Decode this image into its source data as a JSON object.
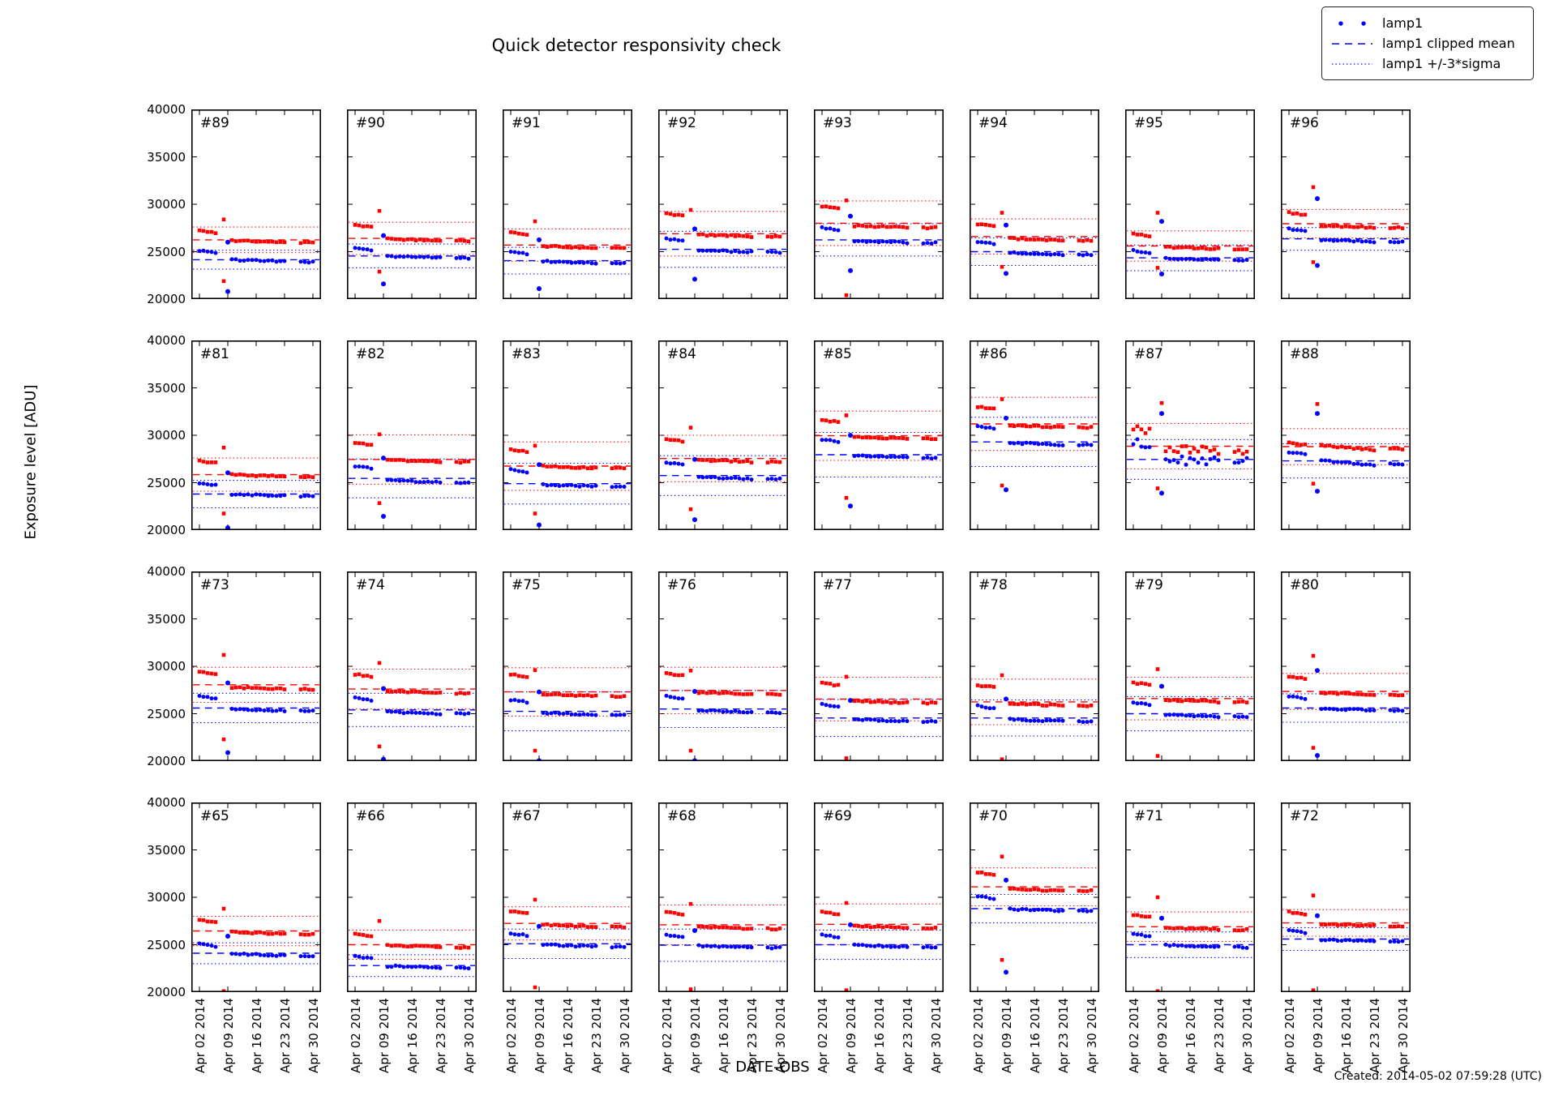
{
  "chart_data": {
    "type": "scatter",
    "title": "Quick detector responsivity check",
    "xlabel": "DATE-OBS",
    "ylabel": "Exposure level [ADU]",
    "created_note": "Created: 2014-05-02 07:59:28 (UTC)",
    "ylim": [
      20000,
      40000
    ],
    "yticks": [
      40000,
      35000,
      30000,
      25000,
      20000
    ],
    "ytick_labels": [
      "40000",
      "35000",
      "30000",
      "25000",
      "20000"
    ],
    "xtick_days": [
      2,
      9,
      16,
      23,
      30
    ],
    "xtick_labels": [
      "Apr 02 2014",
      "Apr 09 2014",
      "Apr 16 2014",
      "Apr 23 2014",
      "Apr 30 2014"
    ],
    "legend": [
      {
        "label": "lamp1",
        "marker": "dots",
        "color": "#0000ff"
      },
      {
        "label": "lamp1 clipped mean",
        "marker": "dashed",
        "color": "#0000ff"
      },
      {
        "label": "lamp1 +/-3*sigma",
        "marker": "dotted",
        "color": "#0000ff"
      }
    ],
    "colors": {
      "blue": "#0000ff",
      "red": "#ff0000"
    },
    "point_days": {
      "pre": [
        2,
        3,
        4,
        5,
        6
      ],
      "main": [
        10,
        11,
        12,
        13,
        14,
        15,
        16,
        17,
        18,
        19,
        20,
        21,
        22,
        23
      ],
      "late": [
        27,
        28,
        29,
        30
      ]
    },
    "panel_format": "r/b = [early_level, main_level, clipped_mean, sigma3]; out = [series, day, value]",
    "panels": [
      {
        "id": "#89",
        "r": [
          27100,
          26100,
          26250,
          1350
        ],
        "b": [
          25000,
          24050,
          24150,
          1000
        ],
        "out": [
          [
            "r",
            8,
            28400
          ],
          [
            "b",
            9,
            26000
          ],
          [
            "r",
            8,
            21900
          ],
          [
            "b",
            9,
            20800
          ]
        ]
      },
      {
        "id": "#90",
        "r": [
          27700,
          26250,
          26400,
          1700
        ],
        "b": [
          25300,
          24450,
          24550,
          1250
        ],
        "out": [
          [
            "r",
            8,
            29300
          ],
          [
            "b",
            9,
            26700
          ],
          [
            "r",
            8,
            22900
          ],
          [
            "b",
            9,
            21600
          ]
        ]
      },
      {
        "id": "#91",
        "r": [
          26900,
          25500,
          25700,
          1700
        ],
        "b": [
          24900,
          23900,
          24050,
          1400
        ],
        "out": [
          [
            "r",
            8,
            28200
          ],
          [
            "b",
            9,
            26250
          ],
          [
            "b",
            9,
            21100
          ]
        ]
      },
      {
        "id": "#92",
        "r": [
          28900,
          26700,
          26900,
          2350
        ],
        "b": [
          26250,
          25050,
          25250,
          1900
        ],
        "out": [
          [
            "r",
            8,
            29400
          ],
          [
            "b",
            9,
            27400
          ],
          [
            "b",
            9,
            22100
          ]
        ]
      },
      {
        "id": "#93",
        "r": [
          29650,
          27650,
          28000,
          2350
        ],
        "b": [
          27400,
          26050,
          26250,
          1700
        ],
        "out": [
          [
            "r",
            8,
            30400
          ],
          [
            "b",
            9,
            28750
          ],
          [
            "b",
            9,
            23000
          ],
          [
            "r",
            8,
            20400
          ]
        ]
      },
      {
        "id": "#94",
        "r": [
          27800,
          26300,
          26600,
          1850
        ],
        "b": [
          25950,
          24800,
          25000,
          1450
        ],
        "out": [
          [
            "r",
            8,
            29100
          ],
          [
            "b",
            9,
            27800
          ],
          [
            "r",
            8,
            23400
          ],
          [
            "b",
            9,
            22700
          ]
        ]
      },
      {
        "id": "#95",
        "r": [
          26800,
          25400,
          25600,
          1600
        ],
        "b": [
          25000,
          24200,
          24350,
          1350
        ],
        "out": [
          [
            "r",
            8,
            29100
          ],
          [
            "b",
            9,
            28200
          ],
          [
            "r",
            8,
            23300
          ],
          [
            "b",
            9,
            22650
          ]
        ]
      },
      {
        "id": "#96",
        "r": [
          29000,
          27650,
          27950,
          1500
        ],
        "b": [
          27300,
          26150,
          26350,
          1200
        ],
        "out": [
          [
            "r",
            8,
            31800
          ],
          [
            "b",
            9,
            30600
          ],
          [
            "r",
            8,
            23900
          ],
          [
            "b",
            9,
            23550
          ]
        ]
      },
      {
        "id": "#81",
        "r": [
          27200,
          25750,
          25850,
          1750
        ],
        "b": [
          24850,
          23700,
          23800,
          1450
        ],
        "out": [
          [
            "r",
            8,
            28700
          ],
          [
            "b",
            9,
            26050
          ],
          [
            "r",
            8,
            21750
          ],
          [
            "b",
            9,
            20250
          ]
        ]
      },
      {
        "id": "#82",
        "r": [
          29100,
          27300,
          27450,
          2600
        ],
        "b": [
          26650,
          25150,
          25450,
          2050
        ],
        "out": [
          [
            "r",
            8,
            30100
          ],
          [
            "b",
            9,
            27600
          ],
          [
            "r",
            8,
            22850
          ],
          [
            "b",
            9,
            21450
          ]
        ]
      },
      {
        "id": "#83",
        "r": [
          28400,
          26650,
          26750,
          2550
        ],
        "b": [
          26250,
          24700,
          24900,
          2150
        ],
        "out": [
          [
            "r",
            8,
            28900
          ],
          [
            "b",
            9,
            26900
          ],
          [
            "r",
            8,
            21750
          ],
          [
            "b",
            9,
            20550
          ]
        ]
      },
      {
        "id": "#84",
        "r": [
          29500,
          27300,
          27550,
          2450
        ],
        "b": [
          27000,
          25500,
          25750,
          2100
        ],
        "out": [
          [
            "r",
            8,
            30800
          ],
          [
            "b",
            9,
            27450
          ],
          [
            "r",
            8,
            22200
          ],
          [
            "b",
            9,
            21100
          ]
        ]
      },
      {
        "id": "#85",
        "r": [
          31500,
          29750,
          29950,
          2600
        ],
        "b": [
          29450,
          27750,
          27950,
          2350
        ],
        "out": [
          [
            "r",
            8,
            32100
          ],
          [
            "b",
            9,
            30000
          ],
          [
            "r",
            8,
            23400
          ],
          [
            "b",
            9,
            22550
          ]
        ]
      },
      {
        "id": "#86",
        "r": [
          32900,
          30950,
          31200,
          2800
        ],
        "b": [
          30850,
          29100,
          29300,
          2600
        ],
        "out": [
          [
            "r",
            8,
            33800
          ],
          [
            "b",
            9,
            31800
          ],
          [
            "r",
            8,
            24700
          ],
          [
            "b",
            9,
            24250
          ]
        ]
      },
      {
        "id": "#87",
        "r": [
          30600,
          28500,
          28850,
          2400
        ],
        "b": [
          29100,
          27300,
          27450,
          2100
        ],
        "jit": 6,
        "out": [
          [
            "r",
            9,
            33400
          ],
          [
            "b",
            9,
            32300
          ],
          [
            "r",
            8,
            24400
          ],
          [
            "b",
            9,
            23900
          ]
        ]
      },
      {
        "id": "#88",
        "r": [
          29100,
          28700,
          28800,
          1900
        ],
        "b": [
          28100,
          27100,
          27300,
          1800
        ],
        "trend": 500,
        "out": [
          [
            "r",
            9,
            33300
          ],
          [
            "b",
            9,
            32300
          ],
          [
            "r",
            8,
            24900
          ],
          [
            "b",
            9,
            24100
          ]
        ]
      },
      {
        "id": "#73",
        "r": [
          29300,
          27700,
          28050,
          1850
        ],
        "b": [
          26700,
          25400,
          25600,
          1550
        ],
        "out": [
          [
            "r",
            8,
            31200
          ],
          [
            "b",
            9,
            28250
          ],
          [
            "r",
            8,
            22300
          ],
          [
            "b",
            9,
            20900
          ]
        ]
      },
      {
        "id": "#74",
        "r": [
          29050,
          27300,
          27600,
          2100
        ],
        "b": [
          26550,
          25100,
          25400,
          1750
        ],
        "out": [
          [
            "r",
            8,
            30350
          ],
          [
            "b",
            9,
            27650
          ],
          [
            "r",
            8,
            21550
          ],
          [
            "b",
            9,
            20200
          ]
        ]
      },
      {
        "id": "#75",
        "r": [
          29050,
          26950,
          27300,
          2550
        ],
        "b": [
          26350,
          25000,
          25250,
          2050
        ],
        "out": [
          [
            "r",
            8,
            29600
          ],
          [
            "b",
            9,
            27300
          ],
          [
            "r",
            8,
            21100
          ],
          [
            "b",
            9,
            20050
          ]
        ]
      },
      {
        "id": "#76",
        "r": [
          29150,
          27150,
          27450,
          2450
        ],
        "b": [
          26700,
          25250,
          25500,
          1950
        ],
        "out": [
          [
            "r",
            8,
            29550
          ],
          [
            "b",
            9,
            27350
          ],
          [
            "r",
            8,
            21100
          ],
          [
            "b",
            9,
            20050
          ]
        ]
      },
      {
        "id": "#77",
        "r": [
          28100,
          26250,
          26550,
          2300
        ],
        "b": [
          25850,
          24300,
          24550,
          1950
        ],
        "out": [
          [
            "r",
            8,
            28900
          ],
          [
            "b",
            9,
            26400
          ],
          [
            "r",
            8,
            20300
          ]
        ]
      },
      {
        "id": "#78",
        "r": [
          27900,
          25950,
          26250,
          2400
        ],
        "b": [
          25700,
          24300,
          24550,
          1900
        ],
        "out": [
          [
            "r",
            8,
            29050
          ],
          [
            "b",
            9,
            26550
          ],
          [
            "r",
            8,
            20200
          ]
        ]
      },
      {
        "id": "#79",
        "r": [
          28150,
          26350,
          26600,
          2250
        ],
        "b": [
          26050,
          24800,
          25000,
          1800
        ],
        "out": [
          [
            "r",
            8,
            29700
          ],
          [
            "b",
            9,
            27900
          ],
          [
            "r",
            8,
            20550
          ]
        ]
      },
      {
        "id": "#80",
        "r": [
          28800,
          27100,
          27350,
          1900
        ],
        "b": [
          26700,
          25450,
          25600,
          1500
        ],
        "out": [
          [
            "r",
            8,
            31100
          ],
          [
            "b",
            9,
            29550
          ],
          [
            "r",
            8,
            21400
          ],
          [
            "b",
            9,
            20600
          ]
        ]
      },
      {
        "id": "#65",
        "r": [
          27500,
          26250,
          26450,
          1550
        ],
        "b": [
          24950,
          23950,
          24100,
          1100
        ],
        "out": [
          [
            "r",
            8,
            28800
          ],
          [
            "b",
            9,
            25900
          ],
          [
            "r",
            8,
            20100
          ]
        ]
      },
      {
        "id": "#66",
        "r": [
          26000,
          24850,
          25000,
          1550
        ],
        "b": [
          23650,
          22650,
          22800,
          1150
        ],
        "out": [
          [
            "r",
            8,
            27500
          ]
        ]
      },
      {
        "id": "#67",
        "r": [
          28450,
          27000,
          27250,
          1750
        ],
        "b": [
          26100,
          24900,
          25100,
          1550
        ],
        "out": [
          [
            "r",
            8,
            29750
          ],
          [
            "b",
            9,
            26950
          ],
          [
            "r",
            8,
            20500
          ]
        ]
      },
      {
        "id": "#68",
        "r": [
          28350,
          26800,
          27100,
          2100
        ],
        "b": [
          25900,
          24800,
          24950,
          1700
        ],
        "out": [
          [
            "r",
            8,
            29300
          ],
          [
            "b",
            9,
            26500
          ],
          [
            "r",
            8,
            20300
          ]
        ]
      },
      {
        "id": "#69",
        "r": [
          28350,
          26900,
          27150,
          2150
        ],
        "b": [
          25900,
          24850,
          25000,
          1550
        ],
        "out": [
          [
            "r",
            8,
            29400
          ],
          [
            "b",
            9,
            27100
          ],
          [
            "r",
            8,
            20200
          ]
        ]
      },
      {
        "id": "#70",
        "r": [
          32500,
          30800,
          31100,
          2000
        ],
        "b": [
          30000,
          28650,
          28800,
          1500
        ],
        "out": [
          [
            "r",
            8,
            34300
          ],
          [
            "b",
            9,
            31800
          ],
          [
            "r",
            8,
            23400
          ],
          [
            "b",
            9,
            22100
          ]
        ]
      },
      {
        "id": "#71",
        "r": [
          28050,
          26700,
          26900,
          1550
        ],
        "b": [
          26000,
          24850,
          25000,
          1350
        ],
        "out": [
          [
            "r",
            8,
            30000
          ],
          [
            "b",
            9,
            27800
          ],
          [
            "r",
            8,
            20100
          ]
        ]
      },
      {
        "id": "#72",
        "r": [
          28350,
          27100,
          27300,
          1400
        ],
        "b": [
          26400,
          25450,
          25600,
          1200
        ],
        "out": [
          [
            "r",
            8,
            30200
          ],
          [
            "b",
            9,
            28050
          ],
          [
            "r",
            8,
            20200
          ]
        ]
      }
    ]
  }
}
